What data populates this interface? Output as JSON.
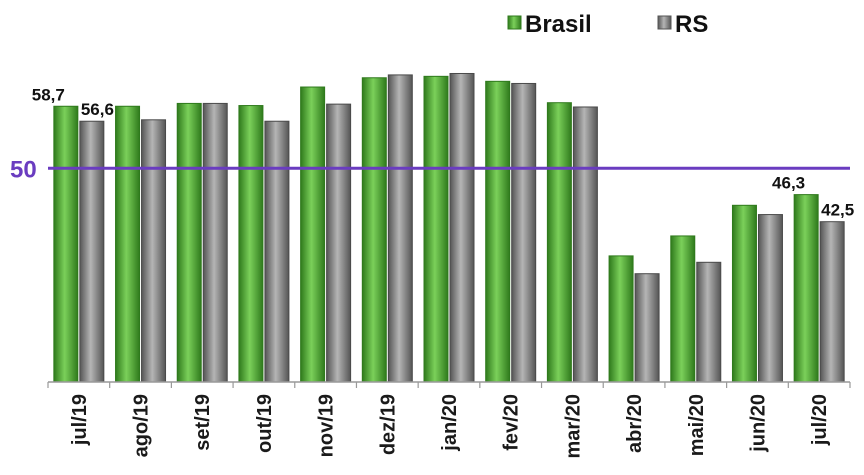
{
  "chart_data": {
    "type": "bar",
    "categories": [
      "jul/19",
      "ago/19",
      "set/19",
      "out/19",
      "nov/19",
      "dez/19",
      "jan/20",
      "fev/20",
      "mar/20",
      "abr/20",
      "mai/20",
      "jun/20",
      "jul/20"
    ],
    "series": [
      {
        "name": "Brasil",
        "color": "#4ea62f",
        "values": [
          58.7,
          58.7,
          59.1,
          58.8,
          61.4,
          62.7,
          62.9,
          62.2,
          59.2,
          37.7,
          40.5,
          44.8,
          46.3
        ]
      },
      {
        "name": "RS",
        "color": "#7a7a7a",
        "values": [
          56.6,
          56.8,
          59.1,
          56.6,
          59.0,
          63.1,
          63.3,
          61.9,
          58.6,
          35.2,
          36.8,
          43.5,
          42.5
        ]
      }
    ],
    "data_labels": [
      {
        "series": 0,
        "index": 0,
        "text": "58,7"
      },
      {
        "series": 1,
        "index": 0,
        "text": "56,6"
      },
      {
        "series": 0,
        "index": 12,
        "text": "46,3"
      },
      {
        "series": 1,
        "index": 12,
        "text": "42,5"
      }
    ],
    "reference_line": {
      "value": 50,
      "label": "50",
      "color": "#6a3cc0"
    },
    "legend": {
      "position": "top-right"
    },
    "ylim": [
      20,
      68
    ],
    "title": "",
    "xlabel": "",
    "ylabel": "",
    "grid": false
  }
}
